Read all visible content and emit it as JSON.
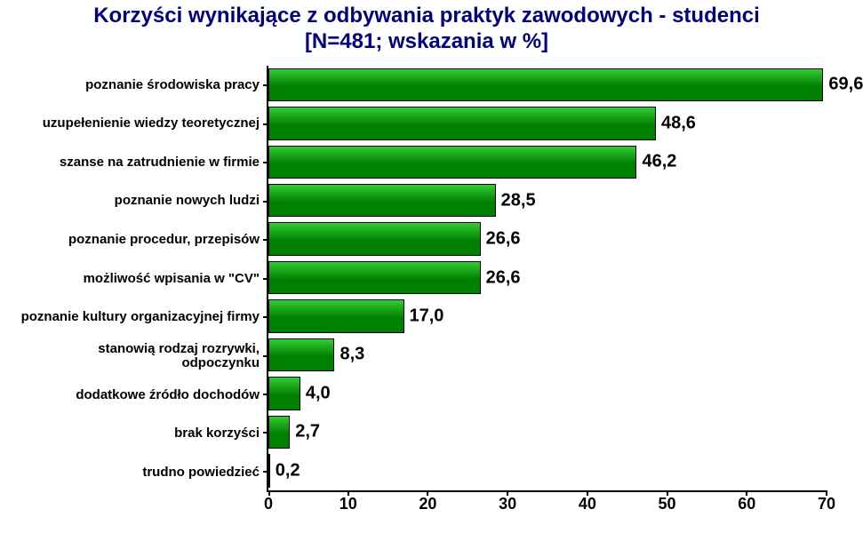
{
  "title_line1": "Korzyści wynikające z odbywania praktyk zawodowych - studenci",
  "title_line2": "[N=481; wskazania w %]",
  "chart": {
    "type": "bar-horizontal",
    "xlim": [
      0,
      70
    ],
    "xtick_step": 10,
    "xticks": [
      0,
      10,
      20,
      30,
      40,
      50,
      60,
      70
    ],
    "bar_fill": "#008000",
    "bar_highlight": "#33cc33",
    "bar_border": "#000000",
    "title_color": "#000080",
    "label_color": "#000000",
    "value_color": "#000000",
    "background": "#ffffff",
    "axis_color": "#000000",
    "title_fontsize": 24,
    "ylabel_fontsize": 15,
    "value_fontsize": 20,
    "xtick_fontsize": 18,
    "categories": [
      "poznanie środowiska pracy",
      "uzupełenienie wiedzy teoretycznej",
      "szanse na zatrudnienie w firmie",
      "poznanie nowych ludzi",
      "poznanie procedur, przepisów",
      "możliwość wpisania w \"CV\"",
      "poznanie kultury organizacyjnej firmy",
      "stanowią rodzaj rozrywki, odpoczynku",
      "dodatkowe źródło dochodów",
      "brak korzyści",
      "trudno powiedzieć"
    ],
    "values": [
      69.6,
      48.6,
      46.2,
      28.5,
      26.6,
      26.6,
      17.0,
      8.3,
      4.0,
      2.7,
      0.2
    ],
    "value_labels": [
      "69,6",
      "48,6",
      "46,2",
      "28,5",
      "26,6",
      "26,6",
      "17,0",
      "8,3",
      "4,0",
      "2,7",
      "0,2"
    ]
  }
}
